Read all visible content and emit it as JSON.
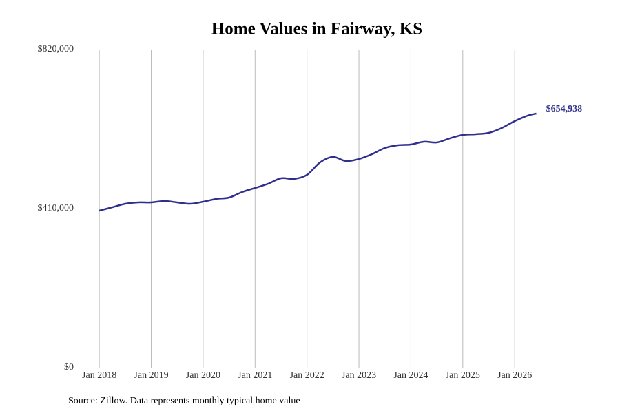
{
  "chart_data": {
    "type": "line",
    "title": "Home Values in Fairway, KS",
    "source": "Source: Zillow. Data represents monthly typical home value",
    "x": [
      "2018-01",
      "2018-04",
      "2018-07",
      "2018-10",
      "2019-01",
      "2019-04",
      "2019-07",
      "2019-10",
      "2020-01",
      "2020-04",
      "2020-07",
      "2020-10",
      "2021-01",
      "2021-04",
      "2021-07",
      "2021-10",
      "2022-01",
      "2022-04",
      "2022-07",
      "2022-10",
      "2023-01",
      "2023-04",
      "2023-07",
      "2023-10",
      "2024-01",
      "2024-04",
      "2024-07",
      "2024-10",
      "2025-01",
      "2025-04",
      "2025-07",
      "2025-10",
      "2026-01",
      "2026-04",
      "2026-06"
    ],
    "series": [
      {
        "name": "Typical home value",
        "color": "#2f2f8c",
        "values": [
          404700,
          413500,
          422400,
          426000,
          426000,
          429500,
          426000,
          422400,
          427700,
          434900,
          438400,
          452600,
          463200,
          473900,
          488100,
          486300,
          497000,
          528900,
          543100,
          532500,
          537800,
          550200,
          566200,
          573300,
          575100,
          582200,
          580400,
          591000,
          599900,
          601700,
          605200,
          617700,
          635400,
          649600,
          654938
        ],
        "value_labels": [
          null,
          null,
          null,
          null,
          null,
          null,
          null,
          null,
          null,
          null,
          null,
          null,
          null,
          null,
          null,
          null,
          null,
          null,
          null,
          null,
          null,
          null,
          null,
          null,
          null,
          null,
          null,
          null,
          null,
          null,
          null,
          null,
          null,
          null,
          "$654,938"
        ]
      }
    ],
    "xlim": [
      "2017-09",
      "2026-11"
    ],
    "xticks": [
      {
        "value": "2018-01",
        "label": "Jan 2018"
      },
      {
        "value": "2019-01",
        "label": "Jan 2019"
      },
      {
        "value": "2020-01",
        "label": "Jan 2020"
      },
      {
        "value": "2021-01",
        "label": "Jan 2021"
      },
      {
        "value": "2022-01",
        "label": "Jan 2022"
      },
      {
        "value": "2023-01",
        "label": "Jan 2023"
      },
      {
        "value": "2024-01",
        "label": "Jan 2024"
      },
      {
        "value": "2025-01",
        "label": "Jan 2025"
      },
      {
        "value": "2026-01",
        "label": "Jan 2026"
      }
    ],
    "ylim": [
      0,
      820000
    ],
    "yticks": [
      {
        "value": 0,
        "label": "$0"
      },
      {
        "value": 410000,
        "label": "$410,000"
      },
      {
        "value": 820000,
        "label": "$820,000"
      }
    ],
    "grid": "x"
  }
}
